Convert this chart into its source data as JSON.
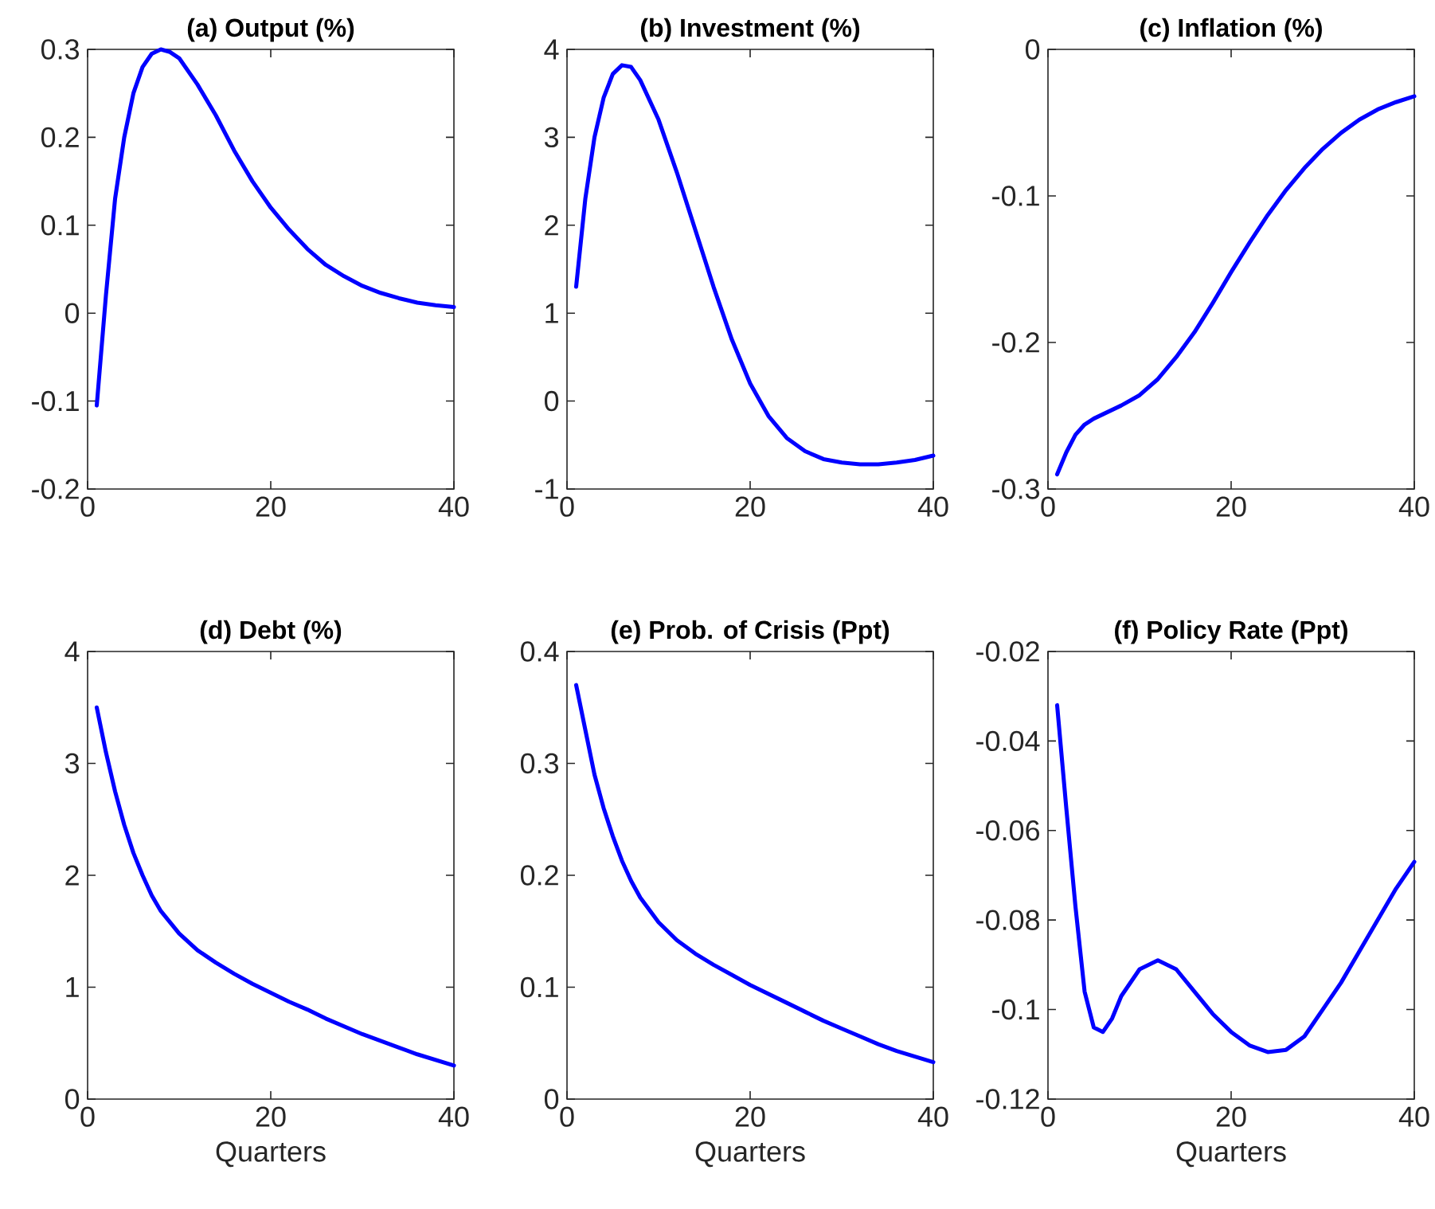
{
  "chart_data": [
    {
      "type": "line",
      "title": "(a) Output (%)",
      "x": [
        1,
        2,
        3,
        4,
        5,
        6,
        7,
        8,
        9,
        10,
        12,
        14,
        16,
        18,
        20,
        22,
        24,
        26,
        28,
        30,
        32,
        34,
        36,
        38,
        40
      ],
      "xlim": [
        0,
        40
      ],
      "xticks": [
        0,
        20,
        40
      ],
      "ylim": [
        -0.2,
        0.3
      ],
      "yticks": [
        -0.2,
        -0.1,
        0,
        0.1,
        0.2,
        0.3
      ],
      "grid": false,
      "line_style": "solid",
      "series": [
        {
          "color": "#0000ff",
          "values": [
            -0.105,
            0.02,
            0.13,
            0.2,
            0.25,
            0.28,
            0.295,
            0.3,
            0.297,
            0.29,
            0.26,
            0.225,
            0.185,
            0.15,
            0.12,
            0.095,
            0.073,
            0.055,
            0.042,
            0.031,
            0.023,
            0.017,
            0.012,
            0.009,
            0.007
          ]
        }
      ]
    },
    {
      "type": "line",
      "title": "(b) Investment (%)",
      "x": [
        1,
        2,
        3,
        4,
        5,
        6,
        7,
        8,
        10,
        12,
        14,
        16,
        18,
        20,
        22,
        24,
        26,
        28,
        30,
        32,
        34,
        36,
        38,
        40
      ],
      "xlim": [
        0,
        40
      ],
      "xticks": [
        0,
        20,
        40
      ],
      "ylim": [
        -1,
        4
      ],
      "yticks": [
        -1,
        0,
        1,
        2,
        3,
        4
      ],
      "grid": false,
      "line_style": "solid",
      "series": [
        {
          "color": "#0000ff",
          "values": [
            1.3,
            2.3,
            3.0,
            3.45,
            3.72,
            3.82,
            3.8,
            3.65,
            3.2,
            2.6,
            1.95,
            1.3,
            0.7,
            0.2,
            -0.17,
            -0.42,
            -0.57,
            -0.66,
            -0.7,
            -0.72,
            -0.72,
            -0.7,
            -0.67,
            -0.62
          ]
        }
      ]
    },
    {
      "type": "line",
      "title": "(c) Inflation (%)",
      "x": [
        1,
        2,
        3,
        4,
        5,
        6,
        8,
        10,
        12,
        14,
        16,
        18,
        20,
        22,
        24,
        26,
        28,
        30,
        32,
        34,
        36,
        38,
        40
      ],
      "xlim": [
        0,
        40
      ],
      "xticks": [
        0,
        20,
        40
      ],
      "ylim": [
        -0.3,
        0
      ],
      "yticks": [
        -0.3,
        -0.2,
        -0.1,
        0
      ],
      "grid": false,
      "line_style": "solid",
      "series": [
        {
          "color": "#0000ff",
          "values": [
            -0.29,
            -0.275,
            -0.263,
            -0.256,
            -0.252,
            -0.249,
            -0.243,
            -0.236,
            -0.225,
            -0.21,
            -0.193,
            -0.173,
            -0.152,
            -0.132,
            -0.113,
            -0.096,
            -0.081,
            -0.068,
            -0.057,
            -0.048,
            -0.041,
            -0.036,
            -0.032
          ]
        }
      ]
    },
    {
      "type": "line",
      "title": "(d) Debt (%)",
      "xlabel": "Quarters",
      "x": [
        1,
        2,
        3,
        4,
        5,
        6,
        7,
        8,
        10,
        12,
        14,
        16,
        18,
        20,
        22,
        24,
        26,
        28,
        30,
        32,
        34,
        36,
        38,
        40
      ],
      "xlim": [
        0,
        40
      ],
      "xticks": [
        0,
        20,
        40
      ],
      "ylim": [
        0,
        4
      ],
      "yticks": [
        0,
        1,
        2,
        3,
        4
      ],
      "grid": false,
      "line_style": "solid",
      "series": [
        {
          "color": "#0000ff",
          "values": [
            3.5,
            3.1,
            2.75,
            2.45,
            2.2,
            2.0,
            1.82,
            1.68,
            1.48,
            1.33,
            1.22,
            1.12,
            1.03,
            0.95,
            0.87,
            0.8,
            0.72,
            0.65,
            0.58,
            0.52,
            0.46,
            0.4,
            0.35,
            0.3
          ]
        }
      ]
    },
    {
      "type": "line",
      "title": "(e) Prob. of Crisis (Ppt)",
      "xlabel": "Quarters",
      "x": [
        1,
        2,
        3,
        4,
        5,
        6,
        7,
        8,
        10,
        12,
        14,
        16,
        18,
        20,
        22,
        24,
        26,
        28,
        30,
        32,
        34,
        36,
        38,
        40
      ],
      "xlim": [
        0,
        40
      ],
      "xticks": [
        0,
        20,
        40
      ],
      "ylim": [
        0,
        0.4
      ],
      "yticks": [
        0,
        0.1,
        0.2,
        0.3,
        0.4
      ],
      "grid": false,
      "line_style": "solid",
      "series": [
        {
          "color": "#0000ff",
          "values": [
            0.37,
            0.33,
            0.29,
            0.26,
            0.235,
            0.213,
            0.195,
            0.18,
            0.158,
            0.142,
            0.13,
            0.12,
            0.111,
            0.102,
            0.094,
            0.086,
            0.078,
            0.07,
            0.063,
            0.056,
            0.049,
            0.043,
            0.038,
            0.033
          ]
        }
      ]
    },
    {
      "type": "line",
      "title": "(f) Policy Rate (Ppt)",
      "xlabel": "Quarters",
      "x": [
        1,
        2,
        3,
        4,
        5,
        6,
        7,
        8,
        10,
        12,
        14,
        16,
        18,
        20,
        22,
        24,
        26,
        28,
        30,
        32,
        34,
        36,
        38,
        40
      ],
      "xlim": [
        0,
        40
      ],
      "xticks": [
        0,
        20,
        40
      ],
      "ylim": [
        -0.12,
        -0.02
      ],
      "yticks": [
        -0.12,
        -0.1,
        -0.08,
        -0.06,
        -0.04,
        -0.02
      ],
      "grid": false,
      "line_style": "solid",
      "series": [
        {
          "color": "#0000ff",
          "values": [
            -0.032,
            -0.055,
            -0.077,
            -0.096,
            -0.104,
            -0.105,
            -0.102,
            -0.097,
            -0.091,
            -0.089,
            -0.091,
            -0.096,
            -0.101,
            -0.105,
            -0.108,
            -0.1095,
            -0.109,
            -0.106,
            -0.1,
            -0.094,
            -0.087,
            -0.08,
            -0.073,
            -0.067
          ]
        }
      ]
    }
  ]
}
